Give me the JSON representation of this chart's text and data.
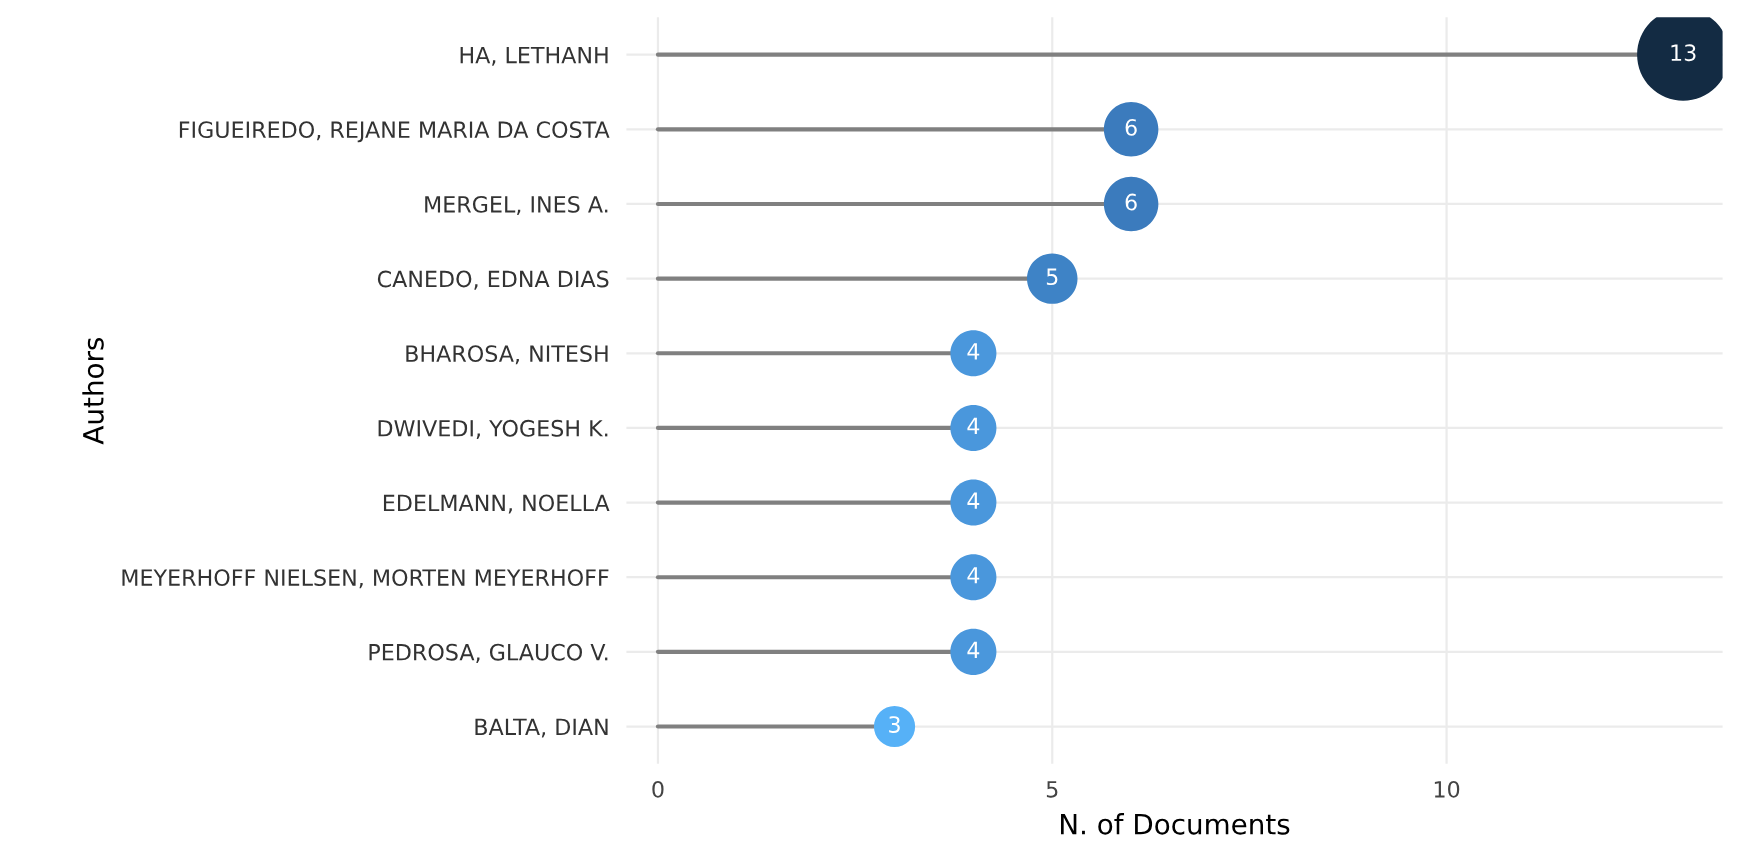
{
  "chart_data": {
    "type": "lollipop",
    "orientation": "horizontal",
    "xlabel": "N. of Documents",
    "ylabel": "Authors",
    "categories": [
      "HA, LETHANH",
      "FIGUEIREDO, REJANE MARIA DA COSTA",
      "MERGEL, INES A.",
      "CANEDO, EDNA DIAS",
      "BHAROSA, NITESH",
      "DWIVEDI, YOGESH K.",
      "EDELMANN, NOELLA",
      "MEYERHOFF NIELSEN, MORTEN MEYERHOFF",
      "PEDROSA, GLAUCO V.",
      "BALTA, DIAN"
    ],
    "values": [
      13,
      6,
      6,
      5,
      4,
      4,
      4,
      4,
      4,
      3
    ],
    "sizes": [
      1,
      0.35,
      0.35,
      0.3,
      0.25,
      0.25,
      0.25,
      0.25,
      0.25,
      0.2
    ],
    "colors": [
      "#132b43",
      "#3b7bbd",
      "#3b7bbd",
      "#3e83c6",
      "#4a97dc",
      "#4a97dc",
      "#4a97dc",
      "#4a97dc",
      "#4a97dc",
      "#56b1f7"
    ],
    "xlim": [
      -0.4,
      13.5
    ],
    "xticks": [
      0,
      5,
      10
    ],
    "grid": true,
    "data_labels": true,
    "marker": "circle"
  }
}
